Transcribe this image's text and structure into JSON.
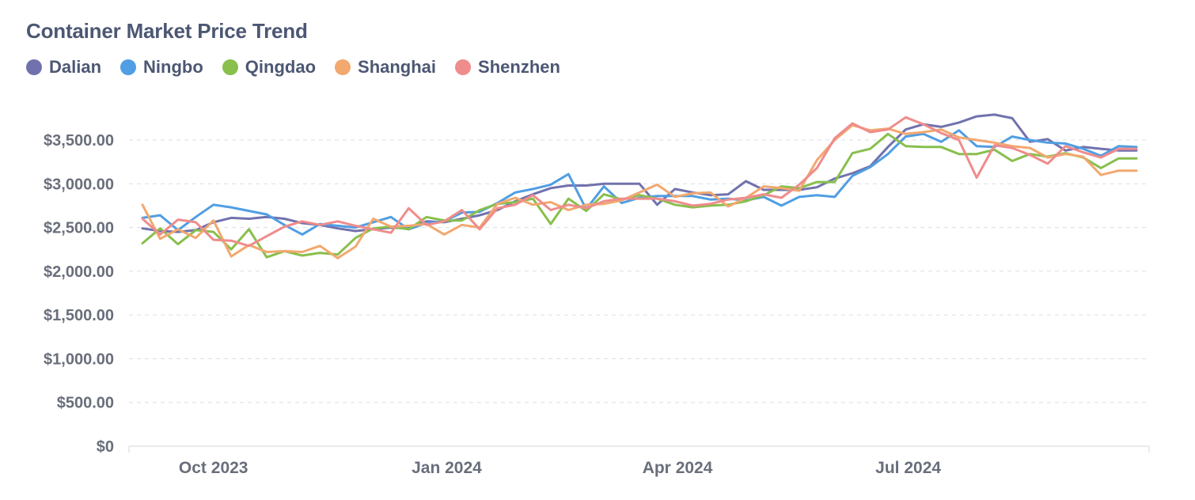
{
  "chart_data": {
    "type": "line",
    "title": "Container Market Price Trend",
    "xlabel": "",
    "ylabel": "",
    "y_ticks": [
      "$0",
      "$500.00",
      "$1,000.00",
      "$1,500.00",
      "$2,000.00",
      "$2,500.00",
      "$3,000.00",
      "$3,500.00"
    ],
    "y_tick_values": [
      0,
      500,
      1000,
      1500,
      2000,
      2500,
      3000,
      3500
    ],
    "ylim": [
      0,
      3550
    ],
    "x_ticks": [
      "Oct 2023",
      "Jan 2024",
      "Apr 2024",
      "Jul 2024"
    ],
    "x_tick_dates": [
      "2023-10-01",
      "2024-01-01",
      "2024-04-01",
      "2024-07-01"
    ],
    "x_start": "2023-09-03",
    "x_period_days": 7,
    "grid": "horizontal-dashed",
    "legend_position": "top-left",
    "series": [
      {
        "name": "Dalian",
        "color": "#7172ad",
        "values": [
          2490,
          2460,
          2450,
          2470,
          2560,
          2610,
          2600,
          2620,
          2600,
          2550,
          2530,
          2490,
          2460,
          2480,
          2500,
          2490,
          2570,
          2560,
          2600,
          2640,
          2700,
          2800,
          2880,
          2950,
          2980,
          2980,
          3000,
          3000,
          3000,
          2760,
          2940,
          2900,
          2870,
          2880,
          3030,
          2930,
          2930,
          2930,
          2960,
          3060,
          3120,
          3200,
          3420,
          3620,
          3680,
          3650,
          3700,
          3770,
          3790,
          3750,
          3480,
          3510,
          3380,
          3420,
          3400,
          3380,
          3380
        ]
      },
      {
        "name": "Ningbo",
        "color": "#509ee3",
        "values": [
          2610,
          2640,
          2470,
          2620,
          2760,
          2730,
          2690,
          2650,
          2530,
          2420,
          2540,
          2520,
          2500,
          2560,
          2620,
          2480,
          2550,
          2570,
          2670,
          2680,
          2780,
          2900,
          2940,
          2990,
          3110,
          2710,
          2970,
          2780,
          2840,
          2860,
          2860,
          2860,
          2820,
          2830,
          2810,
          2850,
          2750,
          2850,
          2870,
          2850,
          3090,
          3190,
          3340,
          3540,
          3570,
          3480,
          3610,
          3430,
          3420,
          3540,
          3500,
          3470,
          3460,
          3400,
          3320,
          3430,
          3420
        ]
      },
      {
        "name": "Qingdao",
        "color": "#88bf4d",
        "values": [
          2320,
          2490,
          2310,
          2470,
          2450,
          2250,
          2480,
          2160,
          2230,
          2180,
          2210,
          2190,
          2380,
          2490,
          2510,
          2480,
          2620,
          2580,
          2580,
          2700,
          2770,
          2790,
          2830,
          2540,
          2830,
          2690,
          2880,
          2820,
          2870,
          2830,
          2760,
          2730,
          2750,
          2760,
          2800,
          2870,
          2970,
          2950,
          3020,
          3020,
          3350,
          3400,
          3570,
          3430,
          3420,
          3420,
          3340,
          3340,
          3390,
          3260,
          3340,
          3310,
          3350,
          3300,
          3180,
          3290,
          3290
        ]
      },
      {
        "name": "Shanghai",
        "color": "#f2a86f",
        "values": [
          2760,
          2370,
          2480,
          2380,
          2580,
          2170,
          2300,
          2220,
          2230,
          2220,
          2290,
          2150,
          2280,
          2600,
          2510,
          2520,
          2540,
          2420,
          2530,
          2500,
          2770,
          2840,
          2760,
          2790,
          2700,
          2760,
          2770,
          2810,
          2900,
          2990,
          2850,
          2890,
          2900,
          2740,
          2840,
          2970,
          2950,
          2920,
          3270,
          3500,
          3670,
          3610,
          3630,
          3570,
          3590,
          3620,
          3530,
          3500,
          3470,
          3430,
          3410,
          3300,
          3340,
          3310,
          3100,
          3150,
          3150
        ]
      },
      {
        "name": "Shenzhen",
        "color": "#ef8c8c",
        "values": [
          2600,
          2420,
          2590,
          2560,
          2360,
          2350,
          2290,
          2400,
          2510,
          2570,
          2530,
          2570,
          2520,
          2480,
          2440,
          2720,
          2530,
          2570,
          2700,
          2480,
          2720,
          2760,
          2870,
          2700,
          2760,
          2720,
          2800,
          2830,
          2830,
          2830,
          2800,
          2750,
          2770,
          2820,
          2840,
          2880,
          2840,
          2990,
          3180,
          3520,
          3690,
          3590,
          3620,
          3760,
          3680,
          3580,
          3500,
          3070,
          3440,
          3410,
          3330,
          3230,
          3430,
          3360,
          3300,
          3400,
          3400
        ]
      }
    ]
  }
}
